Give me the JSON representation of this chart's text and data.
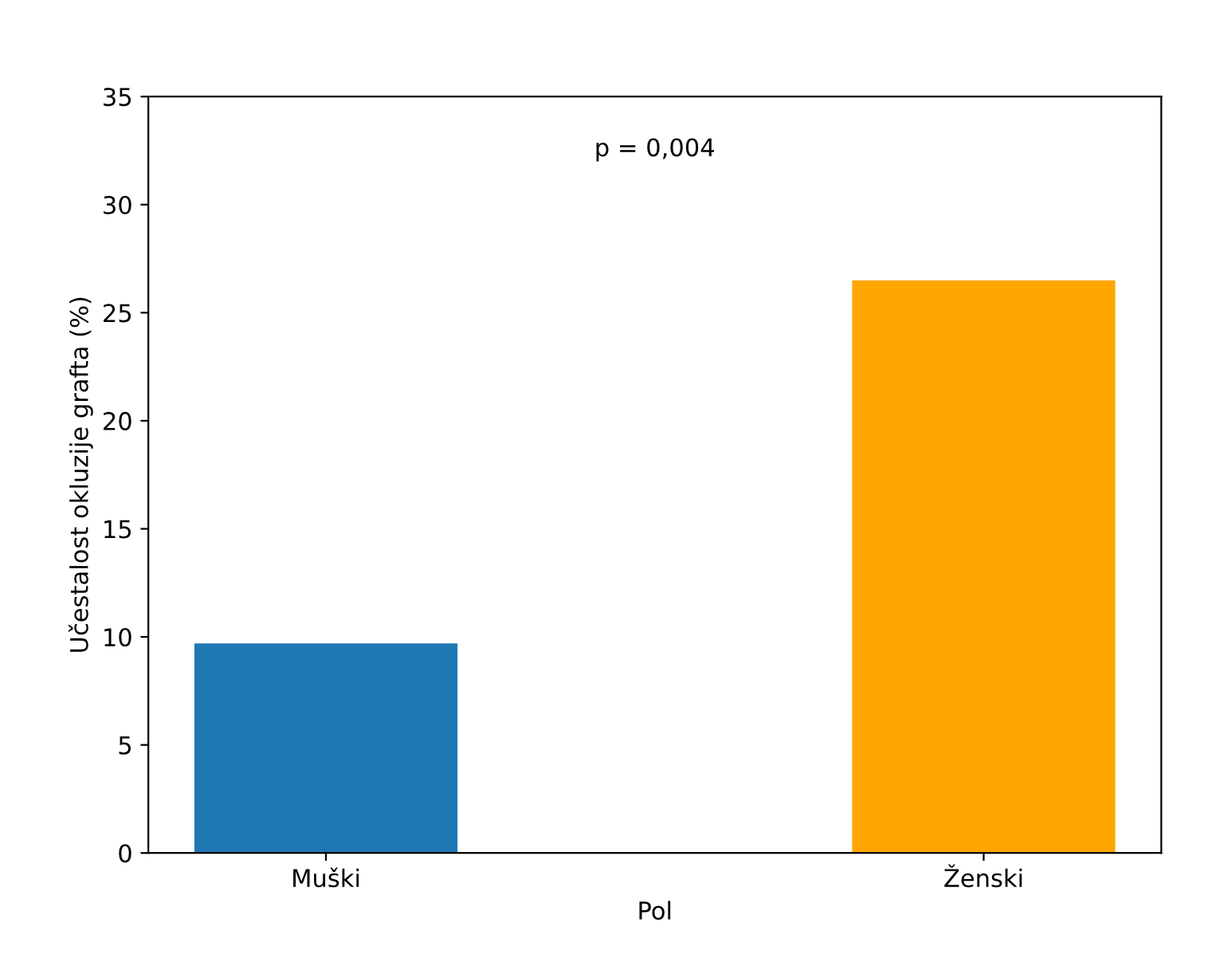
{
  "chart_data": {
    "type": "bar",
    "xlabel": "Pol",
    "ylabel": "Učestalost okluzije grafta (%)",
    "categories": [
      "Muški",
      "Ženski"
    ],
    "values": [
      9.7,
      26.5
    ],
    "colors": [
      "#1f77b4",
      "#ffa500"
    ],
    "ylim": [
      0,
      35
    ],
    "yticks": [
      0,
      5,
      10,
      15,
      20,
      25,
      30,
      35
    ],
    "grid": false,
    "annotations": [
      "p = 0,004"
    ]
  }
}
